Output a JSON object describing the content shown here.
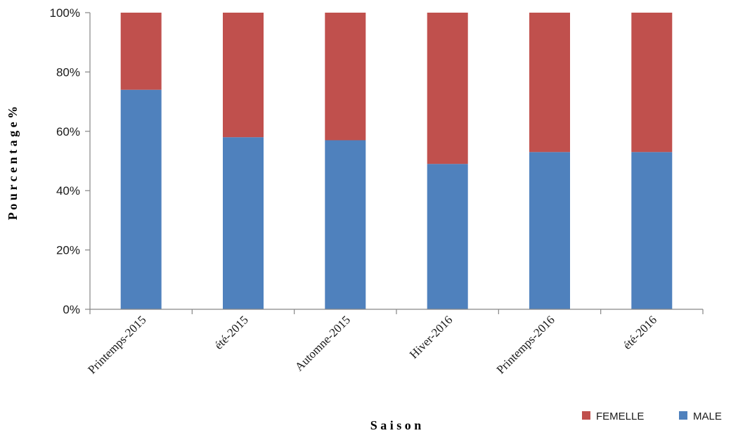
{
  "chart_data": {
    "type": "bar",
    "stacked": true,
    "categories": [
      "Printemps-2015",
      "été-2015",
      "Automne-2015",
      "Hiver-2016",
      "Printemps-2016",
      "été-2016"
    ],
    "series": [
      {
        "name": "MALE",
        "color": "#4F81BD",
        "values": [
          74,
          58,
          57,
          49,
          53,
          53
        ]
      },
      {
        "name": "FEMELLE",
        "color": "#C0504D",
        "values": [
          26,
          42,
          43,
          51,
          47,
          47
        ]
      }
    ],
    "yticks": [
      "0%",
      "20%",
      "40%",
      "60%",
      "80%",
      "100%"
    ],
    "ylim": [
      0,
      100
    ],
    "xlabel": "S a i s o n",
    "ylabel": "P o u r c e n t a g e %",
    "legend_order": [
      "FEMELLE",
      "MALE"
    ],
    "legend_position": "bottom-right",
    "grid": false
  }
}
